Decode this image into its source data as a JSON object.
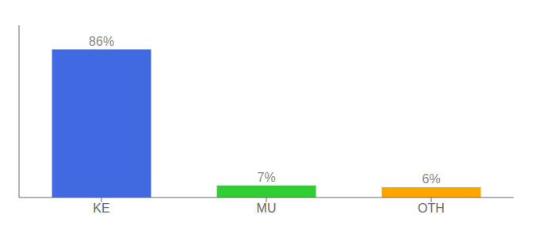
{
  "chart_data": {
    "type": "bar",
    "categories": [
      "KE",
      "MU",
      "OTH"
    ],
    "values": [
      86,
      7,
      6
    ],
    "value_labels": [
      "86%",
      "7%",
      "6%"
    ],
    "colors": [
      "#4169E1",
      "#32CD32",
      "#FFA500"
    ],
    "ylim": [
      0,
      100
    ],
    "data_labels": true,
    "tick_labels": "x"
  }
}
